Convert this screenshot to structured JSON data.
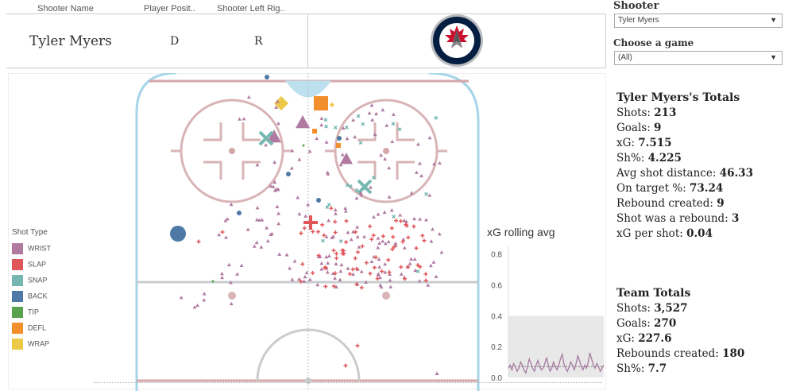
{
  "table": {
    "headers": [
      "Shooter Name",
      "Player Posit..",
      "Shooter Left Rig.."
    ],
    "row": {
      "name": "Tyler Myers",
      "position": "D",
      "hand": "R"
    },
    "logo": "winnipeg-jets-logo"
  },
  "controls": {
    "shooter_label": "Shooter",
    "shooter_value": "Tyler Myers",
    "game_label": "Choose a game",
    "game_value": "(All)"
  },
  "player_totals": {
    "title": "Tyler Myers's Totals",
    "lines": [
      {
        "label": "Shots: ",
        "value": "213"
      },
      {
        "label": "Goals: ",
        "value": "9"
      },
      {
        "label": "xG: ",
        "value": "7.515"
      },
      {
        "label": "Sh%: ",
        "value": "4.225"
      },
      {
        "label": "Avg shot distance: ",
        "value": "46.33"
      },
      {
        "label": "On target %: ",
        "value": "73.24"
      },
      {
        "label": "Rebound created: ",
        "value": "9"
      },
      {
        "label": "Shot was a rebound: ",
        "value": "3"
      },
      {
        "label": "xG per shot: ",
        "value": "0.04"
      }
    ]
  },
  "team_totals": {
    "title": "Team Totals",
    "lines": [
      {
        "label": "Shots: ",
        "value": "3,527"
      },
      {
        "label": "Goals: ",
        "value": "270"
      },
      {
        "label": "xG: ",
        "value": "227.6"
      },
      {
        "label": "Rebounds created: ",
        "value": "180"
      },
      {
        "label": "Sh%: ",
        "value": "7.7"
      }
    ]
  },
  "legend": {
    "title": "Shot Type",
    "items": [
      {
        "label": "WRIST",
        "color": "#b07aa1"
      },
      {
        "label": "SLAP",
        "color": "#e15759"
      },
      {
        "label": "SNAP",
        "color": "#76b7b2"
      },
      {
        "label": "BACK",
        "color": "#4e79a7"
      },
      {
        "label": "TIP",
        "color": "#59a14f"
      },
      {
        "label": "DEFL",
        "color": "#f28e2b"
      },
      {
        "label": "WRAP",
        "color": "#edc948"
      }
    ]
  },
  "chart_data": {
    "type": "line",
    "title": "xG rolling avg",
    "ylim": [
      0,
      0.85
    ],
    "yticks": [
      "0.0",
      "0.2",
      "0.4",
      "0.6",
      "0.8"
    ],
    "band": [
      0,
      0.4
    ],
    "reference_line": 0.07,
    "series": [
      {
        "values": [
          0.06,
          0.08,
          0.05,
          0.09,
          0.07,
          0.04,
          0.06,
          0.1,
          0.08,
          0.05,
          0.03,
          0.07,
          0.12,
          0.09,
          0.06,
          0.04,
          0.08,
          0.11,
          0.07,
          0.05,
          0.06,
          0.09,
          0.13,
          0.08,
          0.04,
          0.06,
          0.1,
          0.07,
          0.05,
          0.08,
          0.12,
          0.15,
          0.09,
          0.06,
          0.04,
          0.07,
          0.1,
          0.08,
          0.05,
          0.09,
          0.14,
          0.11,
          0.07,
          0.05,
          0.08,
          0.06,
          0.1,
          0.16,
          0.12,
          0.08,
          0.06,
          0.09,
          0.07,
          0.04,
          0.06,
          0.08
        ]
      }
    ]
  }
}
